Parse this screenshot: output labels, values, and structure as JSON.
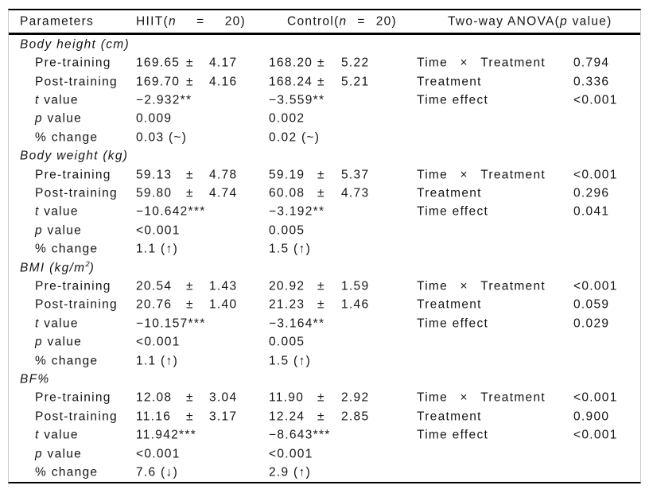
{
  "colors": {
    "rule_black": "#000000",
    "frame_gray": "#c9c9c9",
    "text": "#151515"
  },
  "header": {
    "parameters": "Parameters",
    "hiit_name": "HIIT(",
    "hiit_n": "n",
    "hiit_eq": "=",
    "hiit_count": "20)",
    "control_name": "Control(",
    "control_n": "n",
    "control_eq": "=",
    "control_count": "20)",
    "anova_pre": "Two-way ANOVA(",
    "anova_p": "p",
    "anova_post": " value)"
  },
  "labels": {
    "pre": "Pre-training",
    "post": "Post-training",
    "t": "t",
    "t_rest": " value",
    "p": "p",
    "p_rest": " value",
    "pct": "% change",
    "pm": "±"
  },
  "anova": {
    "time": "Time",
    "times": "×",
    "treatment": "Treatment",
    "treatment_only": "Treatment",
    "time_effect": "Time effect"
  },
  "sections": [
    {
      "title": "Body height (cm)",
      "title_sup": "",
      "title_post": "",
      "pre": {
        "hiit_mean": "169.65",
        "hiit_sd": "4.17",
        "ctrl_mean": "168.20",
        "ctrl_sd": "5.22",
        "anova": "0.794"
      },
      "post": {
        "hiit_mean": "169.70",
        "hiit_sd": "4.16",
        "ctrl_mean": "168.24",
        "ctrl_sd": "5.21",
        "anova": "0.336"
      },
      "t": {
        "hiit": "−2.932**",
        "ctrl": "−3.559**",
        "anova": "<0.001"
      },
      "p": {
        "hiit": "0.009",
        "ctrl": "0.002"
      },
      "pct": {
        "hiit": "0.03 (~)",
        "ctrl": "0.02 (~)"
      }
    },
    {
      "title": "Body weight (kg)",
      "title_sup": "",
      "title_post": "",
      "pre": {
        "hiit_mean": "59.13",
        "hiit_sd": "4.78",
        "ctrl_mean": "59.19",
        "ctrl_sd": "5.37",
        "anova": "<0.001"
      },
      "post": {
        "hiit_mean": "59.80",
        "hiit_sd": "4.74",
        "ctrl_mean": "60.08",
        "ctrl_sd": "4.73",
        "anova": "0.296"
      },
      "t": {
        "hiit": "−10.642***",
        "ctrl": "−3.192**",
        "anova": "0.041"
      },
      "p": {
        "hiit": "<0.001",
        "ctrl": "0.005"
      },
      "pct": {
        "hiit": "1.1 (↑)",
        "ctrl": "1.5 (↑)"
      }
    },
    {
      "title": "BMI (kg/m",
      "title_sup": "2",
      "title_post": ")",
      "pre": {
        "hiit_mean": "20.54",
        "hiit_sd": "1.43",
        "ctrl_mean": "20.92",
        "ctrl_sd": "1.59",
        "anova": "<0.001"
      },
      "post": {
        "hiit_mean": "20.76",
        "hiit_sd": "1.40",
        "ctrl_mean": "21.23",
        "ctrl_sd": "1.46",
        "anova": "0.059"
      },
      "t": {
        "hiit": "−10.157***",
        "ctrl": "−3.164**",
        "anova": "0.029"
      },
      "p": {
        "hiit": "<0.001",
        "ctrl": "0.005"
      },
      "pct": {
        "hiit": "1.1 (↑)",
        "ctrl": "1.5 (↑)"
      }
    },
    {
      "title": "BF%",
      "title_sup": "",
      "title_post": "",
      "pre": {
        "hiit_mean": "12.08",
        "hiit_sd": "3.04",
        "ctrl_mean": "11.90",
        "ctrl_sd": "2.92",
        "anova": "<0.001"
      },
      "post": {
        "hiit_mean": "11.16",
        "hiit_sd": "3.17",
        "ctrl_mean": "12.24",
        "ctrl_sd": "2.85",
        "anova": "0.900"
      },
      "t": {
        "hiit": "11.942***",
        "ctrl": "−8.643***",
        "anova": "<0.001"
      },
      "p": {
        "hiit": "<0.001",
        "ctrl": "<0.001"
      },
      "pct": {
        "hiit": "7.6 (↓)",
        "ctrl": "2.9 (↑)"
      }
    }
  ]
}
